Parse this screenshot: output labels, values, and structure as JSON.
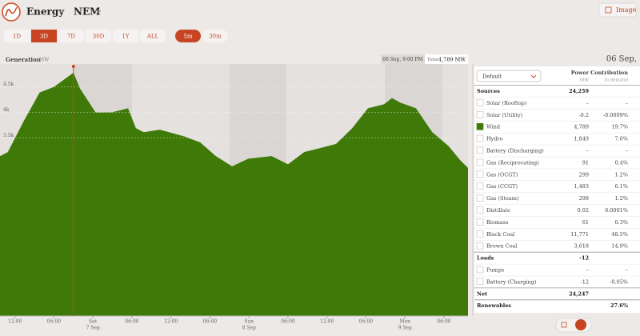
{
  "header": {
    "brand": "Energy",
    "region": "NEM",
    "export_button": "Image"
  },
  "range_buttons": [
    {
      "label": "1D",
      "active": false
    },
    {
      "label": "3D",
      "active": true
    },
    {
      "label": "7D",
      "active": false
    },
    {
      "label": "30D",
      "active": false
    },
    {
      "label": "1Y",
      "active": false
    },
    {
      "label": "ALL",
      "active": false
    }
  ],
  "interval_buttons": [
    {
      "label": "5m",
      "active": true
    },
    {
      "label": "30m",
      "active": false
    }
  ],
  "chart": {
    "type": "area",
    "title": "Generation",
    "unit": "MW",
    "hover": {
      "date": "06 Sep, 9:00 PM",
      "total_label": "Total",
      "total_value": "4,789 MW",
      "x": 21
    },
    "x": [
      9.7,
      10.9,
      13.4,
      15.8,
      18,
      21,
      22,
      24.4,
      26.9,
      29.4,
      30.6,
      31.8,
      34.3,
      38,
      40.5,
      42.9,
      45.4,
      47.9,
      51.5,
      54,
      56.5,
      59,
      61.4,
      63.9,
      66.3,
      68.8,
      70,
      71.3,
      73.7,
      76.2,
      78.7,
      80.5,
      81.7
    ],
    "series": [
      {
        "name": "Wind",
        "color": "#3f7a08",
        "values": [
          3140,
          3220,
          3840,
          4390,
          4500,
          4780,
          4470,
          4000,
          4000,
          4080,
          3690,
          3610,
          3660,
          3530,
          3410,
          3140,
          2940,
          3090,
          3140,
          2980,
          3220,
          3300,
          3380,
          3690,
          4080,
          4160,
          4280,
          4190,
          4080,
          3610,
          3340,
          3060,
          2910
        ]
      }
    ],
    "xlim": [
      9.7,
      81.7
    ],
    "ylim": [
      0,
      4950
    ],
    "yticks": [
      {
        "value": 3500,
        "label": "3.5k"
      },
      {
        "value": 4000,
        "label": "4k"
      },
      {
        "value": 4500,
        "label": "4.5k"
      }
    ],
    "xticks": [
      {
        "value": 12,
        "label": "12:00"
      },
      {
        "value": 18,
        "label": "06:00"
      },
      {
        "value": 24,
        "label": "Sat",
        "sublabel": "7 Sep"
      },
      {
        "value": 30,
        "label": "06:00"
      },
      {
        "value": 36,
        "label": "12:00"
      },
      {
        "value": 42,
        "label": "06:00"
      },
      {
        "value": 48,
        "label": "Sun",
        "sublabel": "8 Sep"
      },
      {
        "value": 54,
        "label": "06:00"
      },
      {
        "value": 60,
        "label": "12:00"
      },
      {
        "value": 66,
        "label": "06:00"
      },
      {
        "value": 72,
        "label": "Mon",
        "sublabel": "9 Sep"
      },
      {
        "value": 78,
        "label": "06:00"
      }
    ]
  },
  "table": {
    "date": "06 Sep,",
    "dropdown": "Default",
    "columns": [
      {
        "label": "Power",
        "unit": "MW"
      },
      {
        "label": "Contribution",
        "unit": "to demand"
      }
    ],
    "rows": [
      {
        "kind": "section",
        "label": "Sources",
        "power": "24,259"
      },
      {
        "kind": "item",
        "label": "Solar (Rooftop)",
        "power": "–",
        "contribution": "–"
      },
      {
        "kind": "item",
        "label": "Solar (Utility)",
        "power": "-0.2",
        "contribution": "-0.0009%"
      },
      {
        "kind": "item",
        "label": "Wind",
        "power": "4,789",
        "contribution": "19.7%",
        "checked": true
      },
      {
        "kind": "item",
        "label": "Hydro",
        "power": "1,849",
        "contribution": "7.6%"
      },
      {
        "kind": "item",
        "label": "Battery (Discharging)",
        "power": "–",
        "contribution": "–"
      },
      {
        "kind": "item",
        "label": "Gas (Reciprocating)",
        "power": "91",
        "contribution": "0.4%"
      },
      {
        "kind": "item",
        "label": "Gas (OCGT)",
        "power": "299",
        "contribution": "1.2%"
      },
      {
        "kind": "item",
        "label": "Gas (CCGT)",
        "power": "1,483",
        "contribution": "6.1%"
      },
      {
        "kind": "item",
        "label": "Gas (Steam)",
        "power": "298",
        "contribution": "1.2%"
      },
      {
        "kind": "item",
        "label": "Distillate",
        "power": "0.02",
        "contribution": "0.0001%"
      },
      {
        "kind": "item",
        "label": "Biomass",
        "power": "61",
        "contribution": "0.3%"
      },
      {
        "kind": "item",
        "label": "Black Coal",
        "power": "11,771",
        "contribution": "48.5%"
      },
      {
        "kind": "item",
        "label": "Brown Coal",
        "power": "3,618",
        "contribution": "14.9%"
      },
      {
        "kind": "section",
        "label": "Loads",
        "power": "-12"
      },
      {
        "kind": "item",
        "label": "Pumps",
        "power": "–",
        "contribution": "–"
      },
      {
        "kind": "item",
        "label": "Battery (Charging)",
        "power": "-12",
        "contribution": "-0.05%"
      },
      {
        "kind": "total",
        "label": "Net",
        "power": "24,247"
      },
      {
        "kind": "total",
        "label": "Renewables",
        "contribution": "27.6%"
      }
    ]
  }
}
